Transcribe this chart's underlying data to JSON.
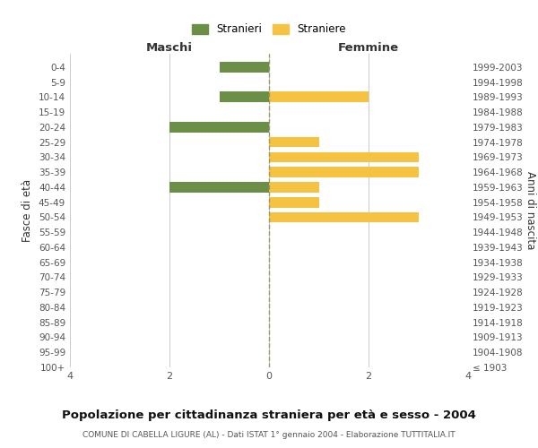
{
  "age_groups": [
    "100+",
    "95-99",
    "90-94",
    "85-89",
    "80-84",
    "75-79",
    "70-74",
    "65-69",
    "60-64",
    "55-59",
    "50-54",
    "45-49",
    "40-44",
    "35-39",
    "30-34",
    "25-29",
    "20-24",
    "15-19",
    "10-14",
    "5-9",
    "0-4"
  ],
  "birth_years": [
    "≤ 1903",
    "1904-1908",
    "1909-1913",
    "1914-1918",
    "1919-1923",
    "1924-1928",
    "1929-1933",
    "1934-1938",
    "1939-1943",
    "1944-1948",
    "1949-1953",
    "1954-1958",
    "1959-1963",
    "1964-1968",
    "1969-1973",
    "1974-1978",
    "1979-1983",
    "1984-1988",
    "1989-1993",
    "1994-1998",
    "1999-2003"
  ],
  "males": [
    0,
    0,
    0,
    0,
    0,
    0,
    0,
    0,
    0,
    0,
    0,
    0,
    2,
    0,
    0,
    0,
    2,
    0,
    1,
    0,
    1
  ],
  "females": [
    0,
    0,
    0,
    0,
    0,
    0,
    0,
    0,
    0,
    0,
    3,
    1,
    1,
    3,
    3,
    1,
    0,
    0,
    2,
    0,
    0
  ],
  "male_color": "#6b8f47",
  "female_color": "#f5c242",
  "male_label": "Stranieri",
  "female_label": "Straniere",
  "title": "Popolazione per cittadinanza straniera per età e sesso - 2004",
  "subtitle": "COMUNE DI CABELLA LIGURE (AL) - Dati ISTAT 1° gennaio 2004 - Elaborazione TUTTITALIA.IT",
  "left_header": "Maschi",
  "right_header": "Femmine",
  "ylabel_left": "Fasce di età",
  "ylabel_right": "Anni di nascita",
  "xlim": 4,
  "background_color": "#ffffff",
  "grid_color": "#cccccc"
}
